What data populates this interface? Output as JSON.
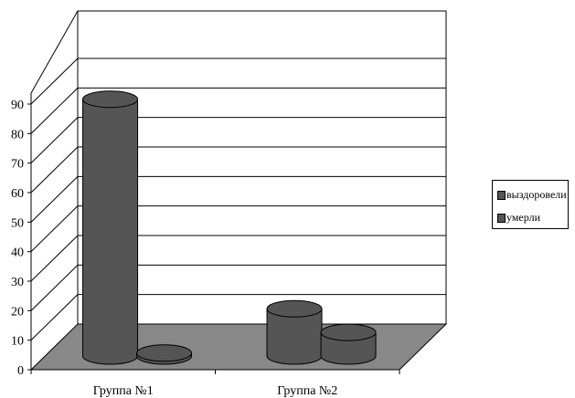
{
  "chart_data": {
    "type": "bar",
    "style": "3d-cylinder",
    "categories": [
      "Группа №1",
      "Группа №2"
    ],
    "series": [
      {
        "name": "выздоровели",
        "values": [
          87,
          16
        ],
        "color": "#555555"
      },
      {
        "name": "умерли",
        "values": [
          1,
          8
        ],
        "color": "#555555"
      }
    ],
    "ylim": [
      0,
      90
    ],
    "yticks": [
      0,
      10,
      20,
      30,
      40,
      50,
      60,
      70,
      80,
      90
    ],
    "grid": true,
    "floor_color": "#888888",
    "legend_position": "right"
  }
}
